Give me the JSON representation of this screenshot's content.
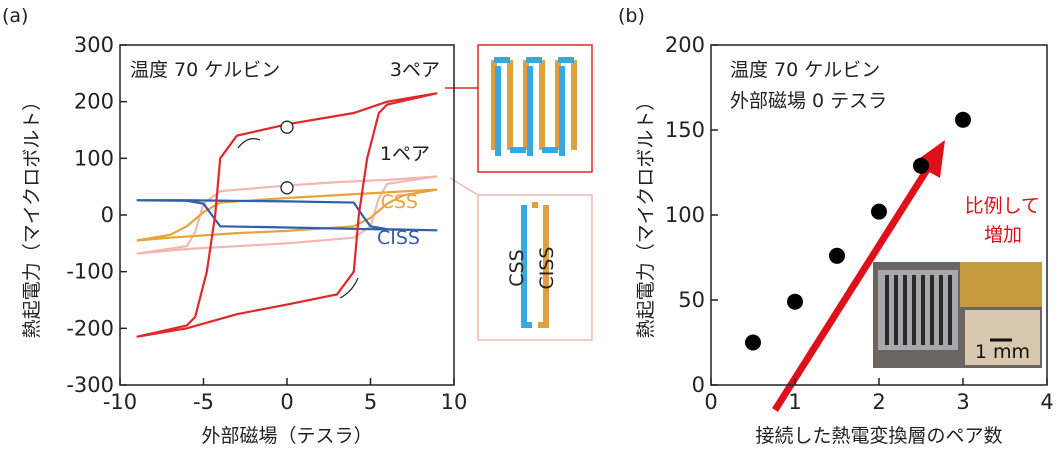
{
  "chart_data": [
    {
      "type": "line",
      "panel": "(a)",
      "x_label": "外部磁場（テスラ）",
      "y_label": "熱起電力（マイクロボルト）",
      "annotations": [
        "温度 70 ケルビン"
      ],
      "xlim": [
        -10,
        10
      ],
      "xticks": [
        -10,
        -5,
        0,
        5,
        10
      ],
      "ylim": [
        -300,
        300
      ],
      "yticks": [
        -300,
        -200,
        -100,
        0,
        100,
        200,
        300
      ],
      "series": [
        {
          "name": "1ペア",
          "color": "#f2b8b0",
          "x": [
            9,
            6,
            3,
            0,
            -4,
            -5,
            -5.5,
            -6,
            -9,
            -6,
            -3,
            0,
            4,
            5,
            5.5,
            6,
            9
          ],
          "values": [
            68,
            62,
            58,
            52,
            42,
            20,
            -30,
            -55,
            -68,
            -60,
            -55,
            -50,
            -40,
            -20,
            30,
            55,
            68
          ]
        },
        {
          "name": "CSS",
          "color": "#e8a33a",
          "x": [
            9,
            6,
            0,
            -4,
            -5,
            -6,
            -7,
            -9,
            -7,
            -3,
            0,
            4,
            5,
            6,
            7,
            9
          ],
          "values": [
            45,
            40,
            30,
            22,
            5,
            -20,
            -35,
            -45,
            -40,
            -32,
            -28,
            -20,
            -5,
            20,
            35,
            45
          ]
        },
        {
          "name": "CISS",
          "color": "#2f5fa8",
          "x": [
            9,
            5,
            0,
            -4,
            -4.5,
            -5,
            -6,
            -9,
            -6,
            0,
            4,
            4.5,
            5,
            6,
            9
          ],
          "values": [
            -27,
            -25,
            -22,
            -20,
            0,
            20,
            25,
            26,
            26,
            24,
            22,
            0,
            -20,
            -25,
            -27
          ]
        },
        {
          "name": "3ペア",
          "color": "#e0282a",
          "x": [
            9,
            6,
            4,
            0,
            -3,
            -4,
            -4.3,
            -4.8,
            -5.5,
            -6,
            -9,
            -6,
            -3,
            0,
            3,
            4,
            4.3,
            4.8,
            5.5,
            6,
            9
          ],
          "values": [
            215,
            200,
            180,
            160,
            140,
            100,
            0,
            -100,
            -180,
            -195,
            -215,
            -200,
            -175,
            -158,
            -140,
            -100,
            0,
            100,
            180,
            195,
            215
          ]
        }
      ],
      "points": {
        "x": [
          0,
          0
        ],
        "values": [
          155,
          48
        ]
      },
      "inset_labels": [
        "CSS",
        "CISS"
      ]
    },
    {
      "type": "scatter",
      "panel": "(b)",
      "x_label": "接続した熱電変換層のペア数",
      "y_label": "熱起電力（マイクロボルト）",
      "annotations": [
        "温度 70 ケルビン",
        "外部磁場 0 テスラ",
        "比例して",
        "増加",
        "1 mm"
      ],
      "xlim": [
        0,
        4
      ],
      "xticks": [
        0,
        1,
        2,
        3,
        4
      ],
      "ylim": [
        0,
        200
      ],
      "yticks": [
        0,
        50,
        100,
        150,
        200
      ],
      "color": "#000000",
      "x": [
        0.5,
        1,
        1.5,
        2,
        2.5,
        3
      ],
      "values": [
        25,
        49,
        76,
        102,
        129,
        156
      ]
    }
  ]
}
